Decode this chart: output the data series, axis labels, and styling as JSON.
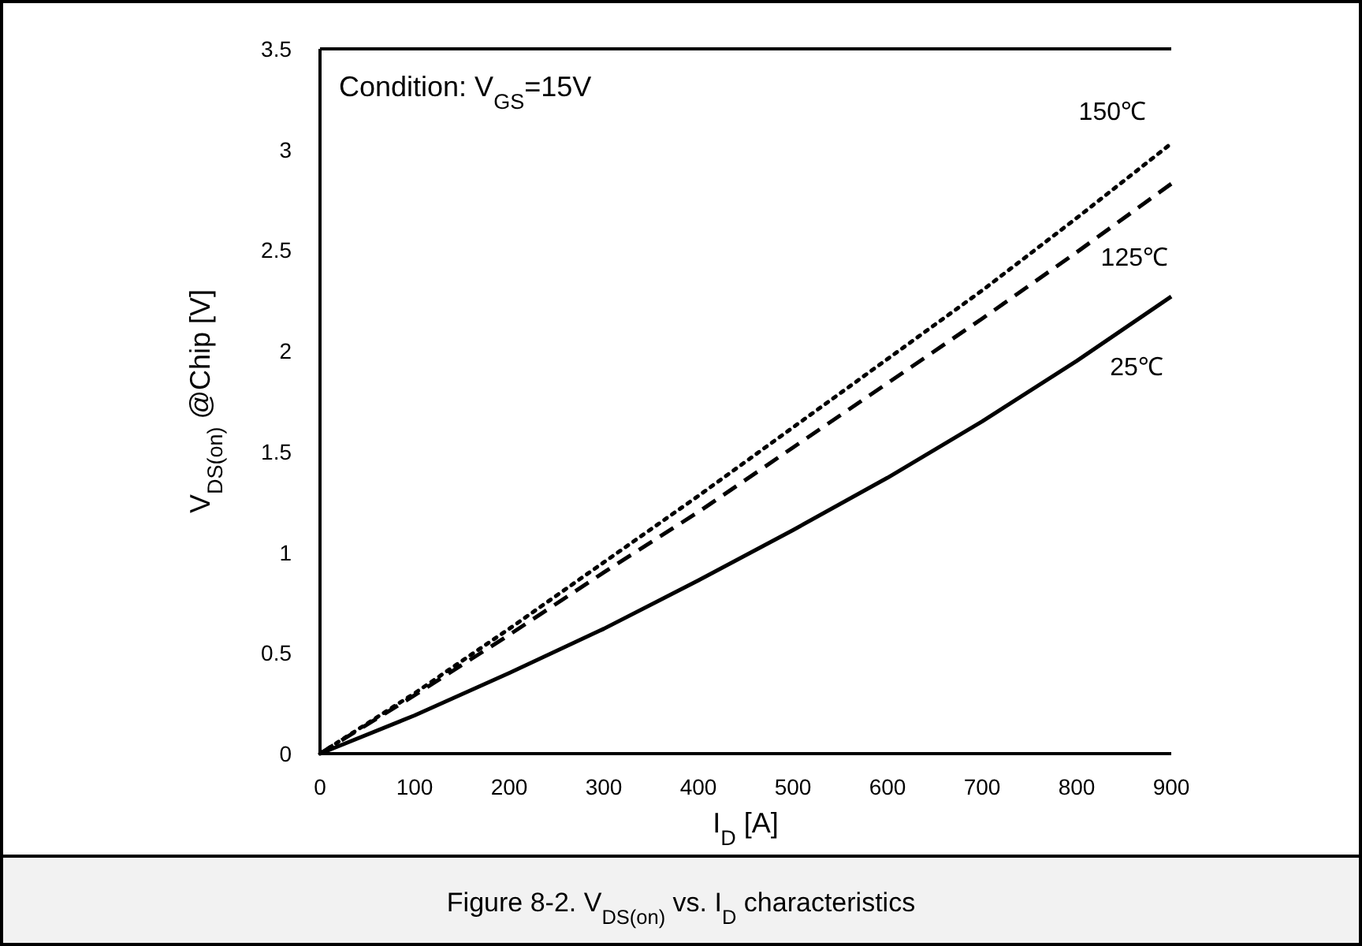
{
  "chart_data": {
    "type": "line",
    "title": "Figure 8-2. V$_{DS(on)}$ vs. I$_{D}$ characteristics",
    "xlabel": "I$_{D}$ [A]",
    "ylabel": "V$_{DS(on)}$ @Chip [V]",
    "annotations": [
      "Condition: V$_{GS}$=15V"
    ],
    "x": [
      0,
      100,
      200,
      300,
      400,
      500,
      600,
      700,
      800,
      900
    ],
    "series": [
      {
        "name": "150℃",
        "color": "#000000",
        "line_style": "dotted",
        "values": [
          0,
          0.3,
          0.62,
          0.95,
          1.28,
          1.62,
          1.96,
          2.3,
          2.66,
          3.03
        ]
      },
      {
        "name": "125℃",
        "color": "#000000",
        "line_style": "dashed",
        "values": [
          0,
          0.29,
          0.59,
          0.9,
          1.2,
          1.52,
          1.84,
          2.16,
          2.49,
          2.83
        ]
      },
      {
        "name": "25℃",
        "color": "#000000",
        "line_style": "solid",
        "values": [
          0,
          0.19,
          0.4,
          0.62,
          0.86,
          1.11,
          1.37,
          1.65,
          1.95,
          2.27
        ]
      }
    ],
    "xlim": [
      0,
      900
    ],
    "xticks": [
      0,
      100,
      200,
      300,
      400,
      500,
      600,
      700,
      800,
      900
    ],
    "ylim": [
      0,
      3.5
    ],
    "yticks": [
      0,
      0.5,
      1,
      1.5,
      2,
      2.5,
      3,
      3.5
    ],
    "grid": false
  }
}
